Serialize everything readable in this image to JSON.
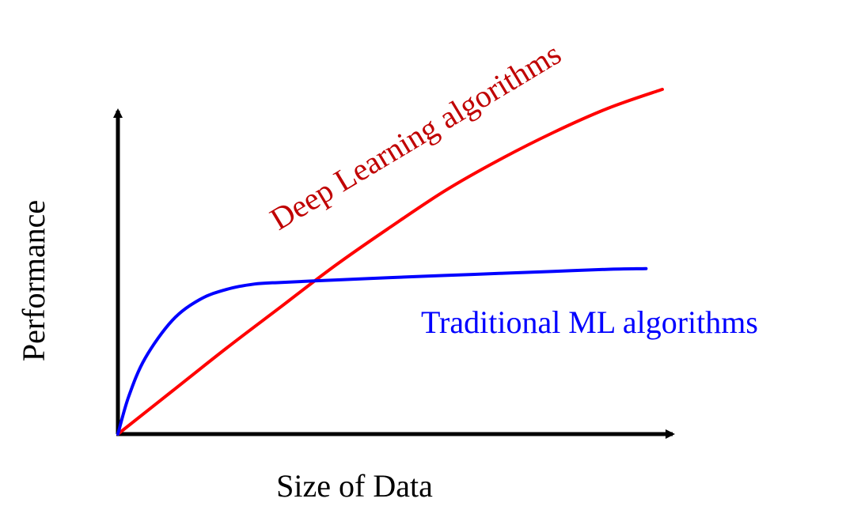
{
  "chart_data": {
    "type": "line",
    "title": "",
    "xlabel": "Size of Data",
    "ylabel": "Performance",
    "xlim": [
      0,
      100
    ],
    "ylim": [
      0,
      100
    ],
    "grid": false,
    "legend": "none",
    "series": [
      {
        "name": "Deep Learning algorithms",
        "color": "#ff0000",
        "label_color": "#c00000",
        "x": [
          0,
          10,
          20,
          30,
          40,
          50,
          60,
          70,
          80,
          90,
          100
        ],
        "y": [
          0,
          12.5,
          25,
          37,
          49,
          60,
          70.5,
          79.5,
          87.5,
          94.5,
          100
        ]
      },
      {
        "name": "Traditional ML algorithms",
        "color": "#0000ff",
        "label_color": "#0000ff",
        "x": [
          0,
          2,
          5,
          10,
          15,
          20,
          25,
          30,
          40,
          50,
          60,
          70,
          80,
          90,
          97
        ],
        "y": [
          0,
          11,
          22,
          33,
          39,
          42,
          43.5,
          44,
          44.7,
          45.4,
          46,
          46.6,
          47.2,
          47.8,
          48
        ]
      }
    ]
  }
}
